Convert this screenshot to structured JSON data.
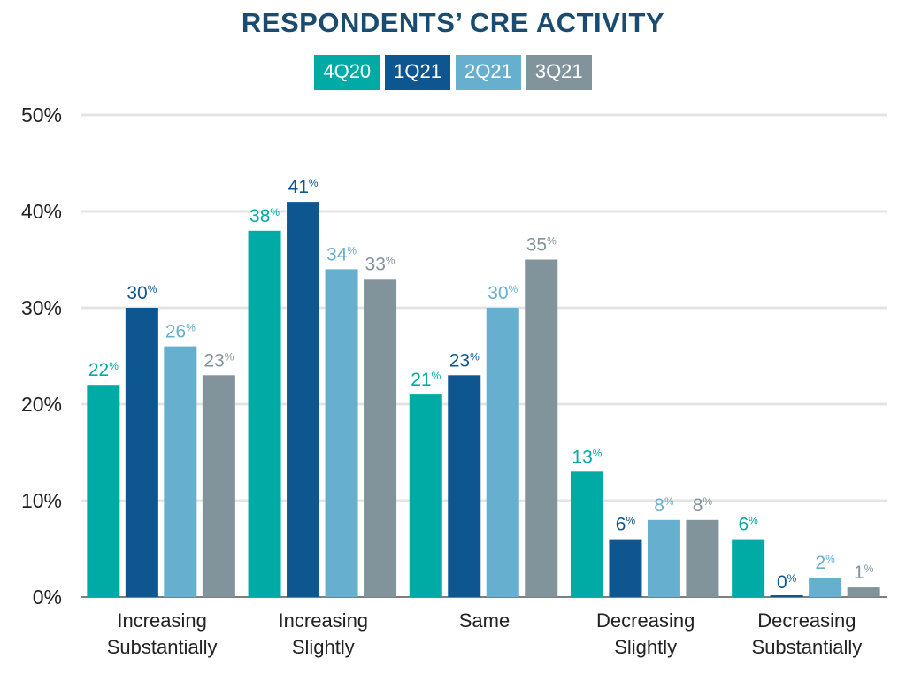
{
  "chart_data": {
    "type": "bar",
    "title": "RESPONDENTS’ CRE ACTIVITY",
    "categories": [
      [
        "Increasing",
        "Substantially"
      ],
      [
        "Increasing",
        "Slightly"
      ],
      [
        "Same"
      ],
      [
        "Decreasing",
        "Slightly"
      ],
      [
        "Decreasing",
        "Substantially"
      ]
    ],
    "series": [
      {
        "name": "4Q20",
        "color": "#00aba5",
        "values": [
          22,
          38,
          21,
          13,
          6
        ]
      },
      {
        "name": "1Q21",
        "color": "#0e5690",
        "values": [
          30,
          41,
          23,
          6,
          0
        ]
      },
      {
        "name": "2Q21",
        "color": "#66afcf",
        "values": [
          26,
          34,
          30,
          8,
          2
        ]
      },
      {
        "name": "3Q21",
        "color": "#82949b",
        "values": [
          23,
          33,
          35,
          8,
          1
        ]
      }
    ],
    "value_suffix": "%",
    "yticks": [
      "0%",
      "10%",
      "20%",
      "30%",
      "40%",
      "50%"
    ],
    "ylim": [
      0,
      50
    ],
    "grid": true,
    "legend": "top-center"
  }
}
